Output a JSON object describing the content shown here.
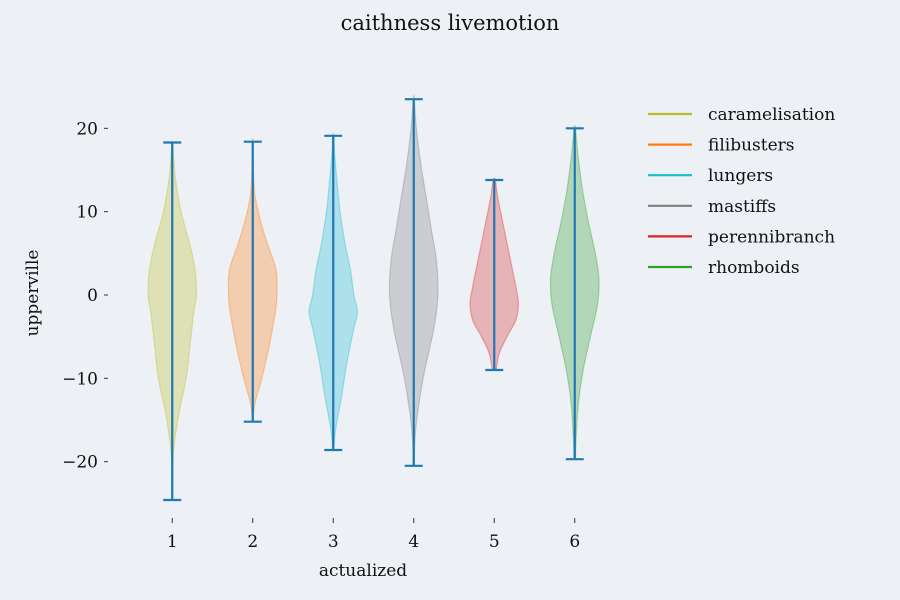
{
  "chart_data": {
    "type": "violin",
    "title": "caithness livemotion",
    "xlabel": "actualized",
    "ylabel": "upperville",
    "ylim": [
      -27,
      27
    ],
    "yticks": [
      -20,
      -10,
      0,
      10,
      20
    ],
    "ytick_labels": [
      "−20",
      "−10",
      "0",
      "10",
      "20"
    ],
    "xtick_labels": [
      "1",
      "2",
      "3",
      "4",
      "5",
      "6"
    ],
    "stat_color": "#1f77b4",
    "legend_position": "right",
    "violins": [
      {
        "name": "caramelisation",
        "position": 1,
        "color": "#bcbd22",
        "min": -24.6,
        "max": 18.3,
        "profile": [
          [
            -24.6,
            0.15
          ],
          [
            -21,
            0.3
          ],
          [
            -18,
            1.5
          ],
          [
            -14,
            5.5
          ],
          [
            -10,
            11
          ],
          [
            -6,
            14
          ],
          [
            -2,
            17
          ],
          [
            0,
            19
          ],
          [
            3,
            18
          ],
          [
            6,
            14
          ],
          [
            10,
            7
          ],
          [
            14,
            2.5
          ],
          [
            17,
            0.8
          ],
          [
            18.3,
            0.2
          ]
        ]
      },
      {
        "name": "filibusters",
        "position": 2,
        "color": "#ff7f0e",
        "min": -15.2,
        "max": 18.4,
        "profile": [
          [
            -15.2,
            0.15
          ],
          [
            -13,
            1.5
          ],
          [
            -10,
            6
          ],
          [
            -6,
            11
          ],
          [
            -2,
            15
          ],
          [
            0,
            16
          ],
          [
            3,
            15.5
          ],
          [
            6,
            10
          ],
          [
            9,
            5
          ],
          [
            12,
            1.5
          ],
          [
            15,
            0.5
          ],
          [
            18.4,
            0.2
          ]
        ]
      },
      {
        "name": "lungers",
        "position": 3,
        "color": "#17becf",
        "min": -18.6,
        "max": 19.1,
        "profile": [
          [
            -18.6,
            0.3
          ],
          [
            -16,
            1.5
          ],
          [
            -12,
            5
          ],
          [
            -8,
            8
          ],
          [
            -4,
            12
          ],
          [
            -2,
            14
          ],
          [
            0,
            12
          ],
          [
            3,
            10
          ],
          [
            6,
            7
          ],
          [
            10,
            4
          ],
          [
            14,
            2
          ],
          [
            17,
            0.8
          ],
          [
            19.1,
            0.3
          ]
        ]
      },
      {
        "name": "mastiffs",
        "position": 4,
        "color": "#7f7f7f",
        "min": -20.5,
        "max": 23.5,
        "profile": [
          [
            -20.5,
            0.3
          ],
          [
            -16,
            1.5
          ],
          [
            -10,
            7
          ],
          [
            -4,
            15
          ],
          [
            0,
            18
          ],
          [
            4,
            17
          ],
          [
            8,
            13
          ],
          [
            12,
            9
          ],
          [
            16,
            5
          ],
          [
            20,
            2
          ],
          [
            23.5,
            0.3
          ]
        ]
      },
      {
        "name": "perennibranch",
        "position": 5,
        "color": "#d62728",
        "min": -9.0,
        "max": 13.8,
        "profile": [
          [
            -9,
            1.5
          ],
          [
            -7,
            4
          ],
          [
            -5,
            10
          ],
          [
            -3,
            17
          ],
          [
            -1,
            19
          ],
          [
            1,
            17
          ],
          [
            4,
            13
          ],
          [
            7,
            9
          ],
          [
            10,
            5
          ],
          [
            12,
            2.5
          ],
          [
            13.8,
            0.8
          ]
        ]
      },
      {
        "name": "rhomboids",
        "position": 6,
        "color": "#2ca02c",
        "min": -19.7,
        "max": 20.0,
        "profile": [
          [
            -19.7,
            0.5
          ],
          [
            -17,
            1.2
          ],
          [
            -13,
            3
          ],
          [
            -9,
            7
          ],
          [
            -5,
            13
          ],
          [
            -1,
            19
          ],
          [
            2,
            20
          ],
          [
            5,
            17
          ],
          [
            9,
            11
          ],
          [
            13,
            6
          ],
          [
            17,
            2.5
          ],
          [
            20,
            0.5
          ]
        ]
      }
    ]
  }
}
